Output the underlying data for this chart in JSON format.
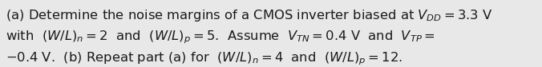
{
  "background_color": "#e8e8e8",
  "text_color": "#1a1a1a",
  "line1": "(a) Determine the noise margins of a CMOS inverter biased at $V_{DD} = 3.3$ V",
  "line2": "with  $(W/L)_n = 2$  and  $(W/L)_p = 5$.  Assume  $V_{TN} = 0.4$ V  and  $V_{TP} =$",
  "line3": "$-0.4$ V.  (b) Repeat part (a) for  $(W/L)_n = 4$  and  $(W/L)_p = 12.$",
  "fontsize": 11.8,
  "fig_width": 6.76,
  "fig_height": 0.84,
  "dpi": 100
}
